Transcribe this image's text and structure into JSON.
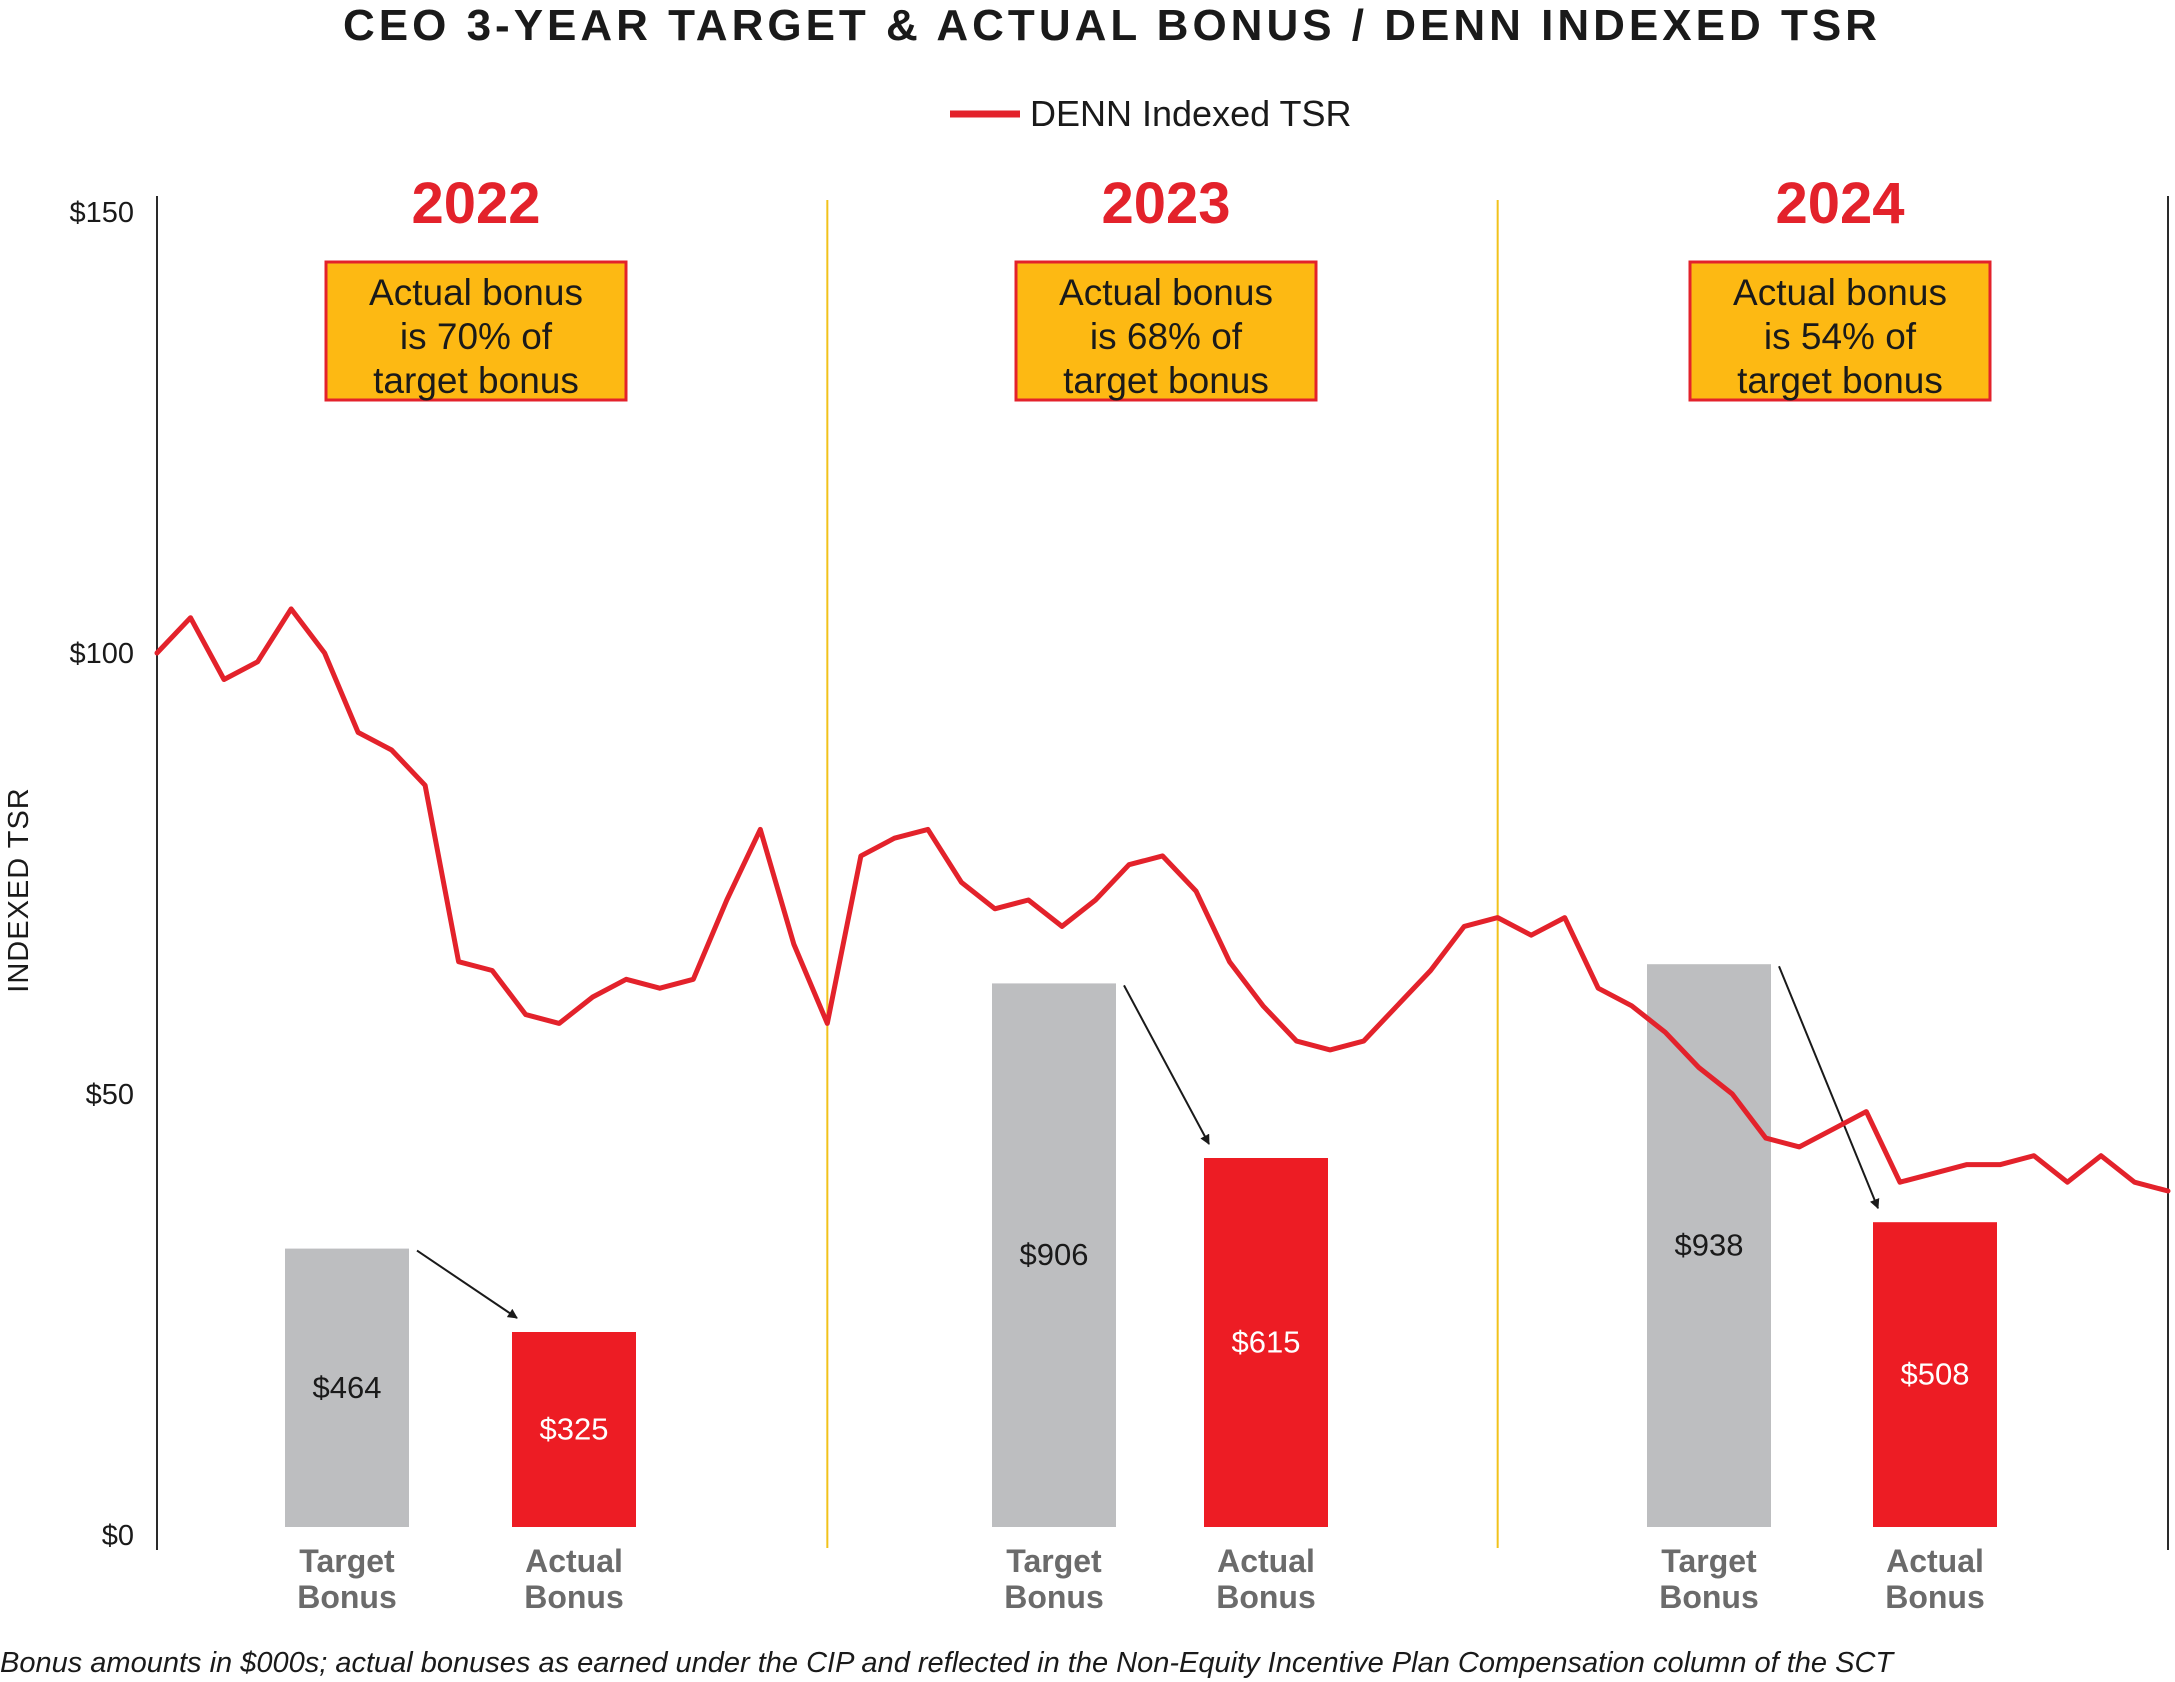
{
  "chart_data": {
    "type": "line",
    "title": "CEO 3-YEAR TARGET & ACTUAL BONUS / DENN INDEXED TSR",
    "ylabel": "INDEXED TSR",
    "xlabel": "",
    "ylim": [
      0,
      150
    ],
    "yticks": [
      {
        "value": 0,
        "label": "$0"
      },
      {
        "value": 50,
        "label": "$50"
      },
      {
        "value": 100,
        "label": "$100"
      },
      {
        "value": 150,
        "label": "$150"
      }
    ],
    "legend": "top-center",
    "series": [
      {
        "name": "DENN Indexed TSR",
        "color": "#e3222b",
        "x": [
          0.0,
          0.05,
          0.1,
          0.15,
          0.2,
          0.25,
          0.3,
          0.35,
          0.4,
          0.45,
          0.5,
          0.55,
          0.6,
          0.65,
          0.7,
          0.75,
          0.8,
          0.85,
          0.9,
          0.95,
          1.0,
          1.05,
          1.1,
          1.15,
          1.2,
          1.25,
          1.3,
          1.35,
          1.4,
          1.45,
          1.5,
          1.55,
          1.6,
          1.65,
          1.7,
          1.75,
          1.8,
          1.85,
          1.9,
          1.95,
          2.0,
          2.05,
          2.1,
          2.15,
          2.2,
          2.25,
          2.3,
          2.35,
          2.4,
          2.45,
          2.5,
          2.55,
          2.6,
          2.65,
          2.7,
          2.75,
          2.8,
          2.85,
          2.9,
          2.95,
          3.0
        ],
        "values": [
          100,
          104,
          97,
          99,
          105,
          100,
          91,
          89,
          85,
          65,
          64,
          59,
          58,
          61,
          63,
          62,
          63,
          72,
          80,
          67,
          58,
          77,
          79,
          80,
          74,
          71,
          72,
          69,
          72,
          76,
          77,
          73,
          65,
          60,
          56,
          55,
          56,
          60,
          64,
          69,
          70,
          68,
          70,
          62,
          60,
          57,
          53,
          50,
          45,
          44,
          46,
          48,
          40,
          41,
          42,
          42,
          43,
          40,
          43,
          40,
          39
        ]
      }
    ],
    "years": [
      {
        "label": "2022",
        "callout": [
          "Actual bonus",
          "is 70% of",
          "target bonus"
        ]
      },
      {
        "label": "2023",
        "callout": [
          "Actual bonus",
          "is 68% of",
          "target bonus"
        ]
      },
      {
        "label": "2024",
        "callout": [
          "Actual bonus",
          "is 54% of",
          "target bonus"
        ]
      }
    ],
    "bonus_bars": {
      "categories": [
        [
          "Target",
          "Bonus"
        ],
        [
          "Actual",
          "Bonus"
        ]
      ],
      "series": [
        {
          "name": "Target Bonus",
          "color": "#bdbec0",
          "values": [
            464,
            906,
            938
          ],
          "labels": [
            "$464",
            "$906",
            "$938"
          ]
        },
        {
          "name": "Actual Bonus",
          "color": "#ed1c24",
          "values": [
            325,
            615,
            508
          ],
          "labels": [
            "$325",
            "$615",
            "$508"
          ]
        }
      ],
      "units": "$000s"
    },
    "footnote": "Bonus amounts in $000s; actual bonuses as earned under the CIP and reflected in the Non-Equity Incentive Plan Compensation column of the SCT"
  },
  "colors": {
    "line": "#e3222b",
    "target_bar": "#bdbec0",
    "actual_bar": "#ed1c24",
    "callout_fill": "#fdb913",
    "callout_border": "#e3222b",
    "divider": "#f2c21b"
  }
}
